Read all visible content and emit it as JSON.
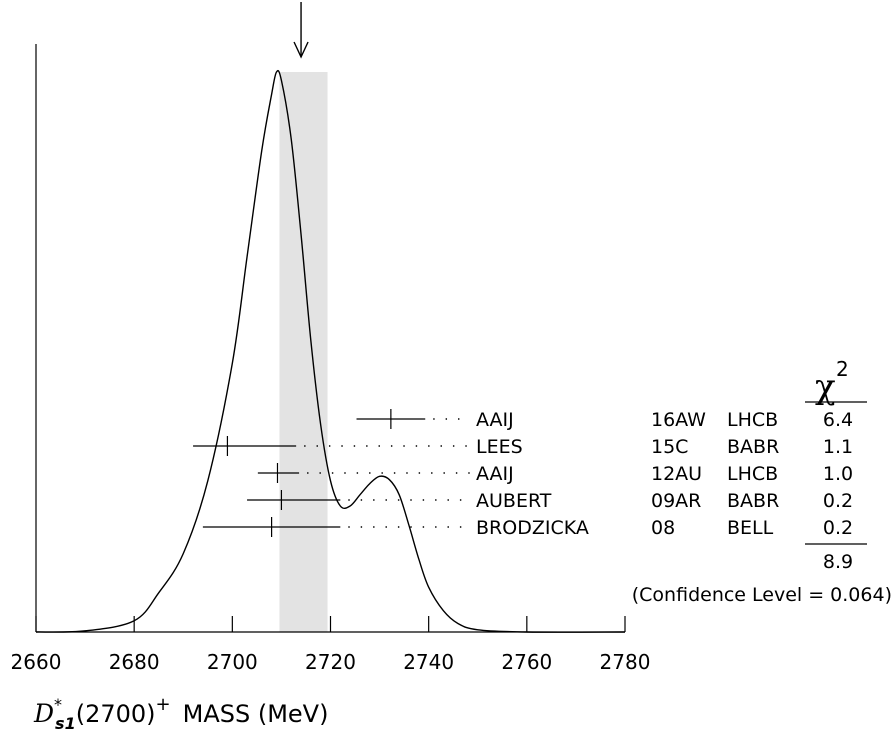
{
  "chart_data": {
    "type": "ideogram",
    "xlim": [
      2660,
      2780
    ],
    "x_ticks": [
      "2660",
      "2680",
      "2700",
      "2720",
      "2740",
      "2760",
      "2780"
    ],
    "xlabel": {
      "symbol": "D",
      "sup": "*",
      "sub": "s1",
      "rest": "(2700)",
      "charge": "+",
      "suffix": "MASS (MeV)"
    },
    "band": {
      "low": 2709.6,
      "high": 2719.4
    },
    "arrow_at": 2714.0,
    "measurements": [
      {
        "author": "AAIJ",
        "year": "16AW",
        "experiment": "LHCB",
        "chi2": "6.4",
        "value": 2732.3,
        "err_low": 7.0,
        "err_high": 7.0
      },
      {
        "author": "LEES",
        "year": "15C",
        "experiment": "BABR",
        "chi2": "1.1",
        "value": 2699.0,
        "err_low": 7.0,
        "err_high": 14.0
      },
      {
        "author": "AAIJ",
        "year": "12AU",
        "experiment": "LHCB",
        "chi2": "1.0",
        "value": 2709.2,
        "err_low": 4.0,
        "err_high": 4.4
      },
      {
        "author": "AUBERT",
        "year": "09AR",
        "experiment": "BABR",
        "chi2": "0.2",
        "value": 2710.0,
        "err_low": 7.0,
        "err_high": 12.0
      },
      {
        "author": "BRODZICKA",
        "year": "08",
        "experiment": "BELL",
        "chi2": "0.2",
        "value": 2708.0,
        "err_low": 14.0,
        "err_high": 14.0
      }
    ],
    "chi2_header": "χ",
    "chi2_header_sup": "2",
    "chi2_total": "8.9",
    "confidence": "(Confidence Level = 0.064)",
    "curve": [
      [
        2660,
        0.0
      ],
      [
        2670,
        0.002
      ],
      [
        2680,
        0.02
      ],
      [
        2685,
        0.07
      ],
      [
        2690,
        0.14
      ],
      [
        2695,
        0.27
      ],
      [
        2700,
        0.48
      ],
      [
        2703,
        0.67
      ],
      [
        2706,
        0.86
      ],
      [
        2708,
        0.96
      ],
      [
        2709,
        1.0
      ],
      [
        2710,
        0.985
      ],
      [
        2712,
        0.88
      ],
      [
        2714,
        0.71
      ],
      [
        2716,
        0.52
      ],
      [
        2718,
        0.37
      ],
      [
        2720,
        0.27
      ],
      [
        2722,
        0.225
      ],
      [
        2724,
        0.225
      ],
      [
        2726,
        0.245
      ],
      [
        2728,
        0.265
      ],
      [
        2730,
        0.278
      ],
      [
        2732,
        0.272
      ],
      [
        2734,
        0.245
      ],
      [
        2736,
        0.19
      ],
      [
        2738,
        0.13
      ],
      [
        2740,
        0.08
      ],
      [
        2743,
        0.038
      ],
      [
        2746,
        0.015
      ],
      [
        2750,
        0.004
      ],
      [
        2760,
        0.0
      ],
      [
        2780,
        0.0
      ]
    ]
  }
}
